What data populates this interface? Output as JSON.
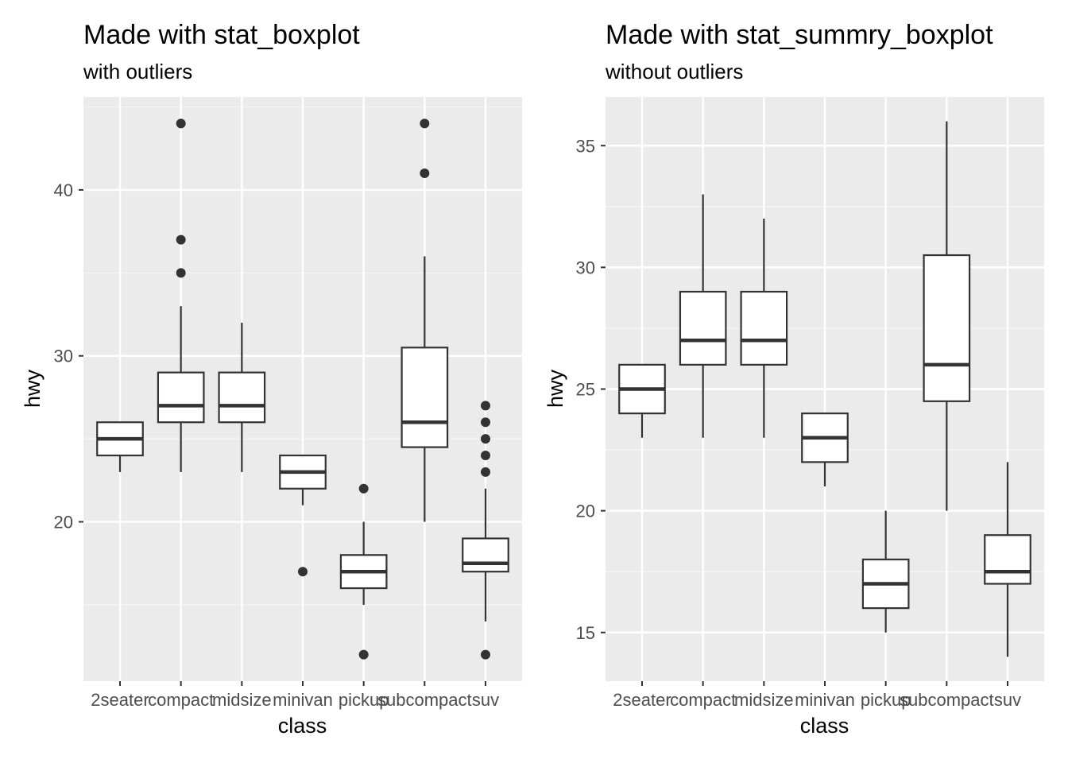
{
  "chart_data": [
    {
      "type": "boxplot",
      "title": "Made with stat_boxplot",
      "subtitle": "with outliers",
      "xlabel": "class",
      "ylabel": "hwy",
      "ylim": [
        10.4,
        45.6
      ],
      "yticks": [
        20,
        30,
        40
      ],
      "grid": true,
      "categories": [
        "2seater",
        "compact",
        "midsize",
        "minivan",
        "pickup",
        "subcompact",
        "suv"
      ],
      "boxes": [
        {
          "min": 23,
          "q1": 24,
          "median": 25,
          "q3": 26,
          "max": 26,
          "outliers": []
        },
        {
          "min": 23,
          "q1": 26,
          "median": 27,
          "q3": 29,
          "max": 33,
          "outliers": [
            35,
            37,
            44
          ]
        },
        {
          "min": 23,
          "q1": 26,
          "median": 27,
          "q3": 29,
          "max": 32,
          "outliers": []
        },
        {
          "min": 21,
          "q1": 22,
          "median": 23,
          "q3": 24,
          "max": 24,
          "outliers": [
            17
          ]
        },
        {
          "min": 15,
          "q1": 16,
          "median": 17,
          "q3": 18,
          "max": 20,
          "outliers": [
            12,
            22
          ]
        },
        {
          "min": 20,
          "q1": 24.5,
          "median": 26,
          "q3": 30.5,
          "max": 36,
          "outliers": [
            41,
            44
          ]
        },
        {
          "min": 14,
          "q1": 17,
          "median": 17.5,
          "q3": 19,
          "max": 22,
          "outliers": [
            12,
            23,
            24,
            25,
            26,
            27
          ]
        }
      ]
    },
    {
      "type": "boxplot",
      "title": "Made with stat_summry_boxplot",
      "subtitle": "without outliers",
      "xlabel": "class",
      "ylabel": "hwy",
      "ylim": [
        13,
        37
      ],
      "yticks": [
        15,
        20,
        25,
        30,
        35
      ],
      "grid": true,
      "categories": [
        "2seater",
        "compact",
        "midsize",
        "minivan",
        "pickup",
        "subcompact",
        "suv"
      ],
      "boxes": [
        {
          "min": 23,
          "q1": 24,
          "median": 25,
          "q3": 26,
          "max": 26,
          "outliers": []
        },
        {
          "min": 23,
          "q1": 26,
          "median": 27,
          "q3": 29,
          "max": 33,
          "outliers": []
        },
        {
          "min": 23,
          "q1": 26,
          "median": 27,
          "q3": 29,
          "max": 32,
          "outliers": []
        },
        {
          "min": 21,
          "q1": 22,
          "median": 23,
          "q3": 24,
          "max": 24,
          "outliers": []
        },
        {
          "min": 15,
          "q1": 16,
          "median": 17,
          "q3": 18,
          "max": 20,
          "outliers": []
        },
        {
          "min": 20,
          "q1": 24.5,
          "median": 26,
          "q3": 30.5,
          "max": 36,
          "outliers": []
        },
        {
          "min": 14,
          "q1": 17,
          "median": 17.5,
          "q3": 19,
          "max": 22,
          "outliers": []
        }
      ]
    }
  ],
  "colors": {
    "panel_background": "#EBEBEB",
    "grid_major": "#FFFFFF",
    "grid_minor": "#F5F5F5",
    "box_stroke": "#333333",
    "box_fill": "#FFFFFF",
    "text": "#000000",
    "tick_text": "#4D4D4D"
  }
}
